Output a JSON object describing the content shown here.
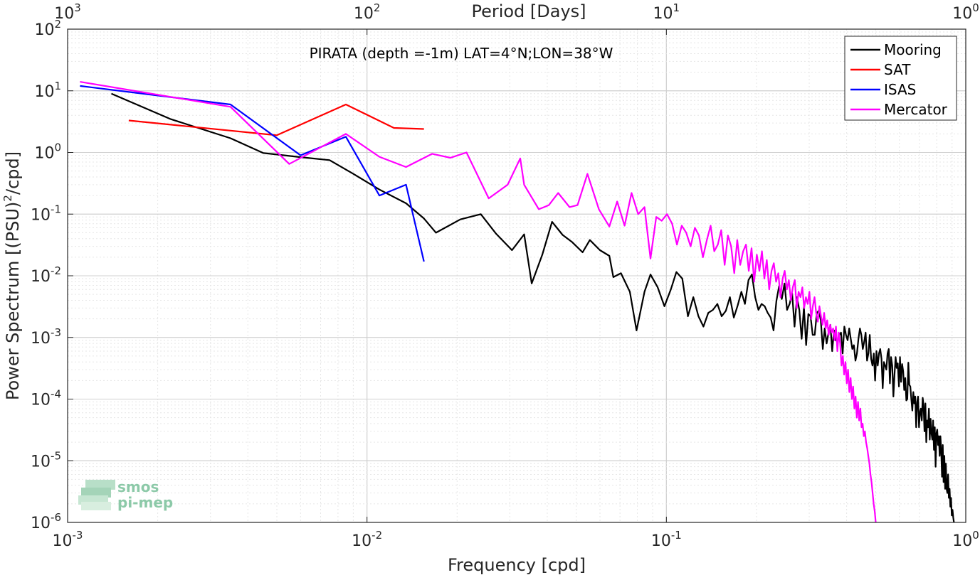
{
  "chart_data": {
    "type": "line",
    "title": "PIRATA (depth =-1m) LAT=4°N;LON=38°W",
    "xlabel": "Frequency [cpd]",
    "ylabel_main": "Power Spectrum [(PSU)",
    "ylabel_sup": "2",
    "ylabel_tail": "/cpd]",
    "top_xlabel": "Period [Days]",
    "xscale": "log",
    "yscale": "log",
    "xlim": [
      0.001,
      1
    ],
    "ylim": [
      1e-06,
      100
    ],
    "grid": true,
    "legend_position": "top-right",
    "x_ticks": [
      {
        "value": 0.001,
        "base": "10",
        "exp": "-3"
      },
      {
        "value": 0.01,
        "base": "10",
        "exp": "-2"
      },
      {
        "value": 0.1,
        "base": "10",
        "exp": "-1"
      },
      {
        "value": 1,
        "base": "10",
        "exp": "0"
      }
    ],
    "top_ticks": [
      {
        "value": 0.001,
        "base": "10",
        "exp": "3"
      },
      {
        "value": 0.01,
        "base": "10",
        "exp": "2"
      },
      {
        "value": 0.1,
        "base": "10",
        "exp": "1"
      },
      {
        "value": 1,
        "base": "10",
        "exp": "0"
      }
    ],
    "y_ticks": [
      {
        "value": 1e-06,
        "base": "10",
        "exp": "-6"
      },
      {
        "value": 1e-05,
        "base": "10",
        "exp": "-5"
      },
      {
        "value": 0.0001,
        "base": "10",
        "exp": "-4"
      },
      {
        "value": 0.001,
        "base": "10",
        "exp": "-3"
      },
      {
        "value": 0.01,
        "base": "10",
        "exp": "-2"
      },
      {
        "value": 0.1,
        "base": "10",
        "exp": "-1"
      },
      {
        "value": 1,
        "base": "10",
        "exp": "0"
      },
      {
        "value": 10,
        "base": "10",
        "exp": "1"
      },
      {
        "value": 100,
        "base": "10",
        "exp": "2"
      }
    ],
    "series": [
      {
        "name": "Mooring",
        "color": "#000000",
        "x": [
          0.0014,
          0.0022,
          0.0035,
          0.0045,
          0.006,
          0.0075,
          0.009,
          0.011,
          0.0135,
          0.0155,
          0.017,
          0.0205,
          0.024,
          0.027,
          0.0305,
          0.0335,
          0.0355,
          0.0385,
          0.0415,
          0.045,
          0.0485,
          0.0525,
          0.0555,
          0.06,
          0.0645,
          0.0665,
          0.0705,
          0.0755,
          0.0795,
          0.0845,
          0.0885,
          0.0935,
          0.0985,
          0.1035,
          0.108,
          0.113,
          0.118,
          0.123,
          0.128,
          0.133,
          0.138,
          0.143,
          0.148,
          0.153,
          0.158,
          0.163,
          0.168,
          0.173,
          0.178,
          0.183,
          0.188,
          0.193,
          0.198,
          0.203,
          0.208,
          0.213,
          0.218,
          0.223,
          0.228,
          0.233,
          0.238,
          0.243,
          0.248,
          0.253,
          0.258,
          0.263,
          0.268,
          0.273,
          0.278,
          0.283,
          0.288,
          0.293,
          0.298,
          0.303,
          0.308,
          0.313,
          0.318,
          0.323,
          0.328,
          0.333,
          0.338,
          0.343,
          0.348,
          0.353,
          0.358,
          0.363,
          0.368,
          0.373,
          0.378,
          0.383,
          0.388,
          0.393,
          0.398,
          0.403,
          0.408,
          0.413,
          0.418,
          0.423,
          0.428,
          0.433,
          0.438,
          0.443,
          0.448,
          0.453,
          0.458,
          0.463,
          0.468,
          0.473,
          0.478,
          0.483,
          0.488,
          0.493,
          0.498,
          0.503,
          0.508,
          0.513,
          0.518,
          0.523,
          0.528,
          0.533,
          0.538,
          0.543,
          0.548,
          0.553,
          0.558,
          0.563,
          0.568,
          0.573,
          0.578,
          0.583,
          0.588,
          0.593,
          0.598,
          0.603,
          0.608,
          0.613,
          0.618,
          0.623,
          0.628,
          0.633,
          0.638,
          0.643,
          0.648,
          0.653,
          0.658,
          0.663,
          0.668,
          0.673,
          0.678,
          0.683,
          0.688,
          0.693,
          0.698,
          0.703,
          0.708,
          0.713,
          0.718,
          0.723,
          0.728,
          0.733,
          0.738,
          0.743,
          0.748,
          0.753,
          0.758,
          0.763,
          0.768,
          0.773,
          0.778,
          0.783,
          0.788,
          0.793,
          0.798,
          0.803,
          0.808,
          0.813,
          0.818,
          0.823,
          0.828,
          0.833,
          0.838,
          0.843,
          0.848,
          0.853,
          0.858,
          0.863,
          0.868,
          0.873,
          0.878,
          0.883,
          0.888,
          0.893,
          0.898,
          0.903,
          0.908,
          0.913
        ],
        "y": [
          9.0,
          3.5,
          1.7,
          0.98,
          0.84,
          0.75,
          0.45,
          0.25,
          0.15,
          0.085,
          0.05,
          0.082,
          0.1,
          0.048,
          0.026,
          0.047,
          0.0075,
          0.022,
          0.075,
          0.046,
          0.035,
          0.024,
          0.038,
          0.026,
          0.021,
          0.0095,
          0.011,
          0.0055,
          0.0013,
          0.0055,
          0.0105,
          0.0065,
          0.0032,
          0.006,
          0.0115,
          0.009,
          0.0022,
          0.0045,
          0.0022,
          0.0015,
          0.0025,
          0.0028,
          0.0035,
          0.0022,
          0.0027,
          0.0045,
          0.0021,
          0.0033,
          0.0055,
          0.0035,
          0.0085,
          0.0105,
          0.0045,
          0.0028,
          0.0035,
          0.0032,
          0.0025,
          0.0021,
          0.0013,
          0.0039,
          0.0068,
          0.0042,
          0.0075,
          0.0028,
          0.0035,
          0.0052,
          0.0015,
          0.0045,
          0.0028,
          0.00095,
          0.0031,
          0.00075,
          0.0024,
          0.0022,
          0.0011,
          0.0011,
          0.0025,
          0.0027,
          0.0019,
          0.00065,
          0.0014,
          0.0008,
          0.0012,
          0.0016,
          0.0006,
          0.0013,
          0.0009,
          0.00085,
          0.0011,
          0.0012,
          0.00055,
          0.0015,
          0.0011,
          0.0009,
          0.0014,
          0.00095,
          0.00065,
          0.00075,
          0.00042,
          0.00055,
          0.00095,
          0.0014,
          0.0011,
          0.00065,
          0.00085,
          0.0012,
          0.00042,
          0.00055,
          0.0011,
          0.00045,
          0.00035,
          0.00055,
          0.0002,
          0.0006,
          0.00035,
          0.00055,
          0.00065,
          0.00045,
          0.00015,
          0.0004,
          0.00035,
          0.0003,
          0.00055,
          0.00065,
          0.00018,
          0.00048,
          0.00035,
          0.00011,
          0.00025,
          0.00048,
          0.00032,
          0.00038,
          0.00016,
          0.00048,
          0.00019,
          0.00037,
          0.00028,
          0.00014,
          0.00022,
          9.5e-05,
          0.0001,
          0.00039,
          0.00017,
          0.00016,
          0.0001,
          6.5e-05,
          0.00013,
          8.5e-05,
          0.00011,
          3.5e-05,
          9e-05,
          0.00011,
          3.5e-05,
          6e-05,
          7e-05,
          4.5e-05,
          0.000105,
          8e-05,
          3e-05,
          8.5e-05,
          2e-05,
          4.5e-05,
          3.5e-05,
          7e-05,
          2.2e-05,
          4.8e-05,
          2.8e-05,
          2.2e-05,
          4.5e-05,
          1.5e-05,
          3.5e-05,
          8e-06,
          2.8e-05,
          3.2e-05,
          1.8e-05,
          2.5e-05,
          1.2e-05,
          2.5e-05,
          1.5e-05,
          5.5e-06,
          1.8e-05,
          4.5e-06,
          1.2e-05,
          3.5e-06,
          9e-06,
          3.5e-06,
          3e-06,
          6e-06,
          2.5e-06,
          3.5e-06,
          1.8e-06,
          2.5e-06,
          1.3e-06,
          1.6e-06,
          1.2e-06,
          1e-06
        ]
      },
      {
        "name": "SAT",
        "color": "#ff0000",
        "x": [
          0.0016,
          0.005,
          0.0085,
          0.0123,
          0.0155
        ],
        "y": [
          3.3,
          1.9,
          6.0,
          2.5,
          2.4
        ]
      },
      {
        "name": "ISAS",
        "color": "#0000ff",
        "x": [
          0.0011,
          0.0035,
          0.006,
          0.0085,
          0.011,
          0.0135,
          0.0155
        ],
        "y": [
          12.0,
          6.0,
          0.9,
          1.8,
          0.2,
          0.3,
          0.017
        ]
      },
      {
        "name": "Mercator",
        "color": "#ff00ff",
        "x": [
          0.0011,
          0.0035,
          0.0055,
          0.0085,
          0.011,
          0.0135,
          0.0165,
          0.019,
          0.0215,
          0.0255,
          0.0295,
          0.0325,
          0.0335,
          0.0375,
          0.0405,
          0.0435,
          0.0475,
          0.0505,
          0.0545,
          0.0595,
          0.0645,
          0.0685,
          0.0725,
          0.0765,
          0.0805,
          0.0845,
          0.0885,
          0.0925,
          0.0965,
          0.1005,
          0.1045,
          0.1085,
          0.1125,
          0.1165,
          0.1205,
          0.1245,
          0.1285,
          0.1325,
          0.1365,
          0.1405,
          0.1445,
          0.1485,
          0.1525,
          0.1565,
          0.1605,
          0.1645,
          0.1685,
          0.1725,
          0.1765,
          0.1805,
          0.1845,
          0.1885,
          0.1925,
          0.1965,
          0.2005,
          0.2045,
          0.2085,
          0.2125,
          0.2165,
          0.2205,
          0.2245,
          0.2285,
          0.2325,
          0.2365,
          0.2405,
          0.2445,
          0.2485,
          0.2525,
          0.2565,
          0.2605,
          0.2645,
          0.2685,
          0.2725,
          0.2765,
          0.2805,
          0.2845,
          0.2885,
          0.2925,
          0.2965,
          0.3005,
          0.3045,
          0.3085,
          0.3125,
          0.3165,
          0.3205,
          0.3245,
          0.3285,
          0.3325,
          0.3365,
          0.3405,
          0.3445,
          0.3485,
          0.3525,
          0.3565,
          0.3605,
          0.3645,
          0.3685,
          0.3725,
          0.3765,
          0.3805,
          0.3845,
          0.3885,
          0.3925,
          0.3965,
          0.4005,
          0.4045,
          0.4085,
          0.4125,
          0.4165,
          0.4205,
          0.4245,
          0.4285,
          0.4325,
          0.4365,
          0.4405,
          0.4445,
          0.4485,
          0.4525,
          0.4565,
          0.4605,
          0.4645,
          0.4685,
          0.4725,
          0.4765,
          0.4805,
          0.4845,
          0.4885,
          0.4925,
          0.4965,
          0.5005
        ],
        "y": [
          14.0,
          5.5,
          0.65,
          2.0,
          0.85,
          0.58,
          0.95,
          0.82,
          1.0,
          0.18,
          0.3,
          0.8,
          0.3,
          0.12,
          0.14,
          0.22,
          0.13,
          0.14,
          0.45,
          0.12,
          0.063,
          0.16,
          0.065,
          0.22,
          0.1,
          0.13,
          0.019,
          0.09,
          0.078,
          0.1,
          0.07,
          0.032,
          0.065,
          0.05,
          0.03,
          0.06,
          0.045,
          0.02,
          0.038,
          0.065,
          0.025,
          0.032,
          0.055,
          0.015,
          0.045,
          0.03,
          0.011,
          0.038,
          0.015,
          0.025,
          0.032,
          0.012,
          0.028,
          0.008,
          0.022,
          0.012,
          0.025,
          0.009,
          0.018,
          0.006,
          0.012,
          0.016,
          0.008,
          0.011,
          0.0045,
          0.009,
          0.012,
          0.006,
          0.0085,
          0.004,
          0.0065,
          0.0085,
          0.003,
          0.0055,
          0.0045,
          0.0065,
          0.003,
          0.0045,
          0.0035,
          0.0055,
          0.002,
          0.0032,
          0.0045,
          0.0025,
          0.0018,
          0.0032,
          0.0022,
          0.0016,
          0.0025,
          0.0014,
          0.0019,
          0.0011,
          0.0016,
          0.0012,
          0.0014,
          0.0009,
          0.0015,
          0.0006,
          0.0012,
          0.0008,
          0.00035,
          0.0005,
          0.00025,
          0.0004,
          0.00018,
          0.0003,
          0.00013,
          0.00022,
          0.0001,
          0.00016,
          7e-05,
          0.00011,
          5e-05,
          9e-05,
          4.5e-05,
          7e-05,
          3.5e-05,
          4e-05,
          2.5e-05,
          3e-05,
          2e-05,
          1.6e-05,
          1.2e-05,
          9e-06,
          6e-06,
          4.5e-06,
          3e-06,
          2e-06,
          1.5e-06,
          1e-06
        ]
      }
    ]
  },
  "logo": {
    "line1": "smos",
    "line2": "pi-mep"
  }
}
